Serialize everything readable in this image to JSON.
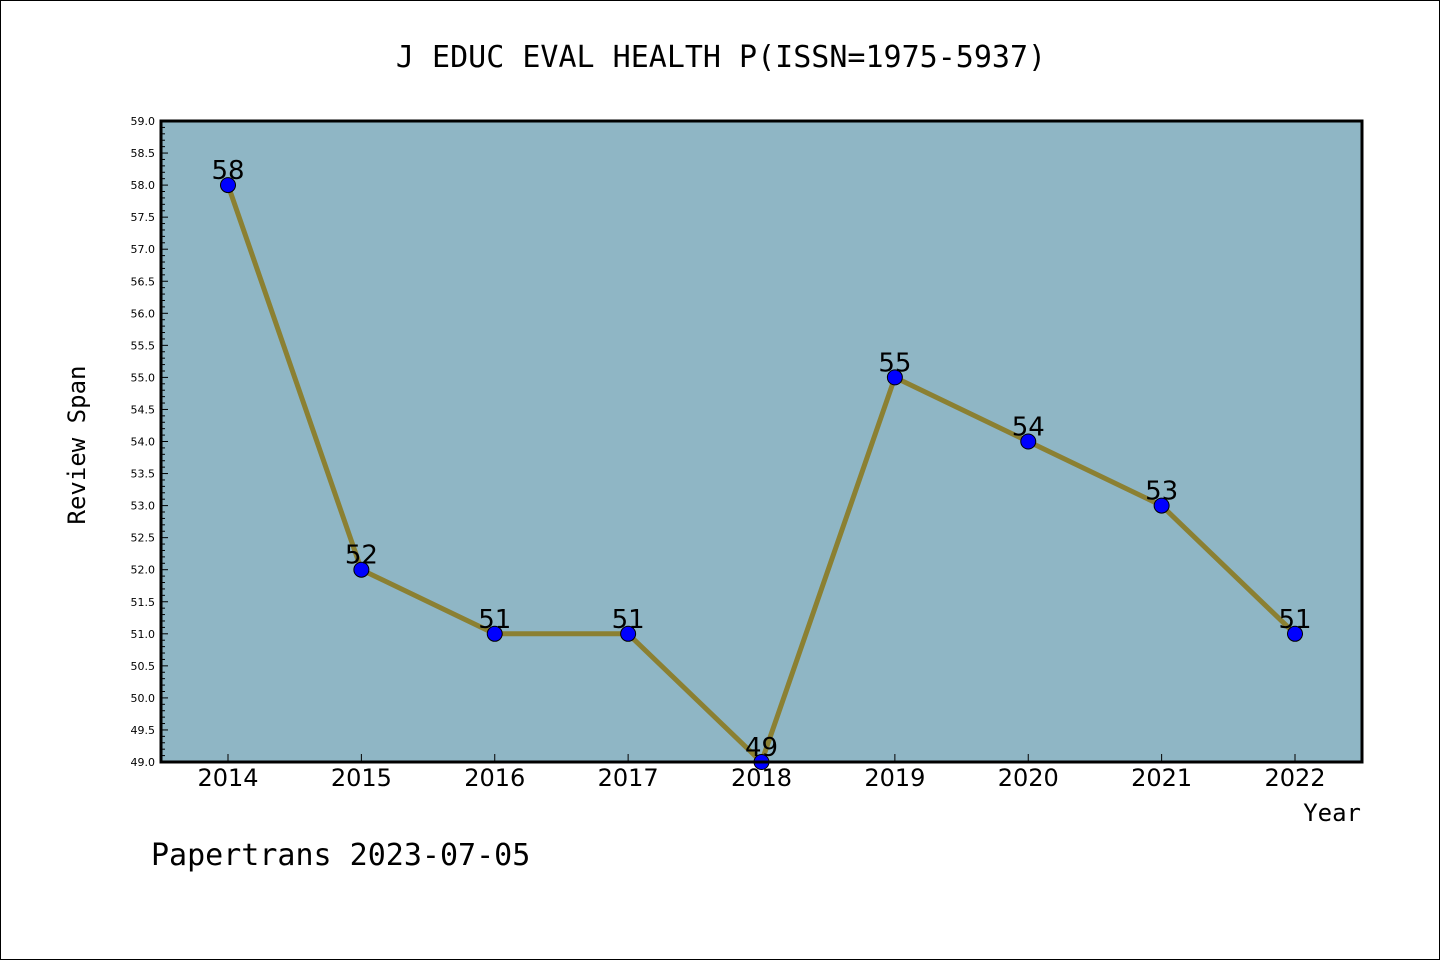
{
  "chart_data": {
    "type": "line",
    "title": "J EDUC EVAL HEALTH P(ISSN=1975-5937)",
    "xlabel": "Year",
    "ylabel": "Review Span",
    "categories": [
      "2014",
      "2015",
      "2016",
      "2017",
      "2018",
      "2019",
      "2020",
      "2021",
      "2022"
    ],
    "series": [
      {
        "values": [
          58,
          52,
          51,
          51,
          49,
          55,
          54,
          53,
          51
        ]
      }
    ],
    "data_labels": [
      "58",
      "52",
      "51",
      "51",
      "49",
      "55",
      "54",
      "53",
      "51"
    ],
    "ylim": [
      49.0,
      59.0
    ],
    "ytick_step": 0.5,
    "grid": false,
    "colors": {
      "plot_background": "#8fb6c5",
      "line": "#8b8032",
      "marker": "#0000ff"
    }
  },
  "footer": {
    "text": "Papertrans 2023-07-05"
  }
}
